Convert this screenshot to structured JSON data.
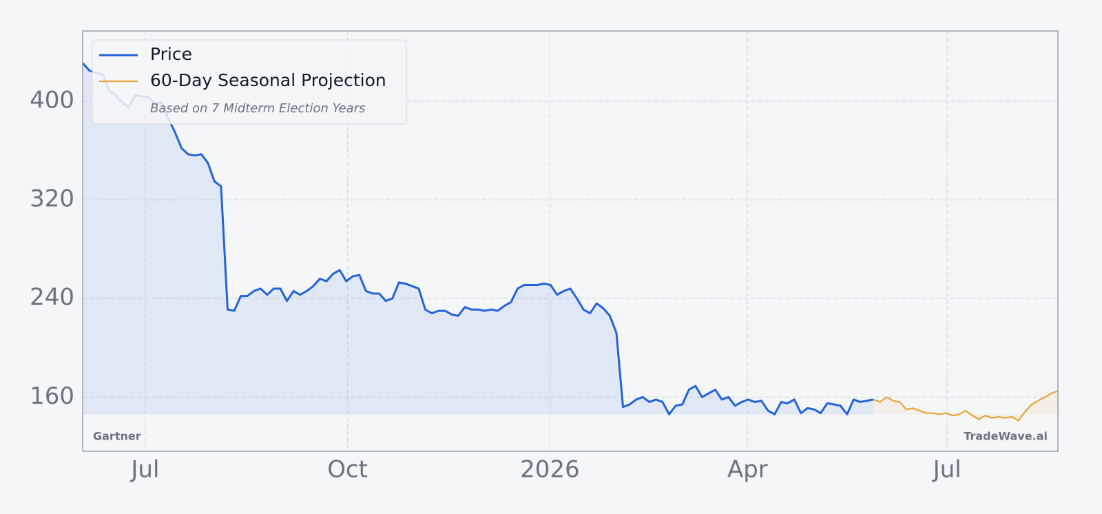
{
  "chart_data": {
    "type": "line",
    "legend_loc": "upper left",
    "legend_note": "Based on 7 Midterm Election Years",
    "watermark_left": "Gartner",
    "watermark_right": "TradeWave.ai",
    "grid": true,
    "fill": true,
    "ylim": [
      116,
      457
    ],
    "yticks": [
      160,
      240,
      320,
      400
    ],
    "xlim": [
      0,
      148
    ],
    "xticks": [
      {
        "value": 9.5,
        "label": "Jul"
      },
      {
        "value": 40.2,
        "label": "Oct"
      },
      {
        "value": 70.9,
        "label": "2026"
      },
      {
        "value": 100.9,
        "label": "Apr"
      },
      {
        "value": 131.2,
        "label": "Jul"
      }
    ],
    "series": [
      {
        "name": "Price",
        "color": "#2563d9",
        "values": [
          431,
          425,
          423,
          422,
          409,
          405,
          399,
          395,
          405,
          404,
          403,
          398,
          399,
          386,
          375,
          362,
          357,
          356,
          357,
          350,
          335,
          331,
          231,
          230,
          242,
          242,
          246,
          248,
          243,
          248,
          248,
          238,
          246,
          243,
          246,
          250,
          256,
          254,
          260,
          263,
          254,
          258,
          259,
          246,
          244,
          244,
          238,
          240,
          253,
          252,
          250,
          248,
          231,
          228,
          230,
          230,
          227,
          226,
          233,
          231,
          231,
          230,
          231,
          230,
          234,
          237,
          248,
          251,
          251,
          251,
          252,
          251,
          243,
          246,
          248,
          240,
          231,
          228,
          236,
          232,
          226,
          212,
          152,
          154,
          158,
          160,
          156,
          158,
          156,
          146,
          153,
          154,
          166,
          169,
          160,
          163,
          166,
          158,
          160,
          153,
          156,
          158,
          156,
          157,
          149,
          146,
          156,
          155,
          158,
          147,
          151,
          150,
          147,
          155,
          154,
          153,
          146,
          158,
          156,
          157,
          158,
          null,
          null,
          null,
          null,
          null,
          null,
          null,
          null,
          null,
          null,
          null,
          null,
          null,
          null,
          null,
          null,
          null,
          null,
          null,
          null,
          null,
          null,
          null,
          null,
          null,
          null,
          null,
          null,
          null,
          null,
          null,
          null,
          null,
          null
        ]
      },
      {
        "name": "60-Day Seasonal Projection",
        "color": "#e8a33a",
        "values": [
          null,
          null,
          null,
          null,
          null,
          null,
          null,
          null,
          null,
          null,
          null,
          null,
          null,
          null,
          null,
          null,
          null,
          null,
          null,
          null,
          null,
          null,
          null,
          null,
          null,
          null,
          null,
          null,
          null,
          null,
          null,
          null,
          null,
          null,
          null,
          null,
          null,
          null,
          null,
          null,
          null,
          null,
          null,
          null,
          null,
          null,
          null,
          null,
          null,
          null,
          null,
          null,
          null,
          null,
          null,
          null,
          null,
          null,
          null,
          null,
          null,
          null,
          null,
          null,
          null,
          null,
          null,
          null,
          null,
          null,
          null,
          null,
          null,
          null,
          null,
          null,
          null,
          null,
          null,
          null,
          null,
          null,
          null,
          null,
          null,
          null,
          null,
          null,
          null,
          null,
          null,
          null,
          null,
          null,
          null,
          null,
          null,
          null,
          null,
          null,
          null,
          null,
          null,
          null,
          null,
          null,
          null,
          null,
          null,
          null,
          null,
          null,
          null,
          null,
          null,
          null,
          null,
          null,
          null,
          null,
          158,
          156,
          160,
          157,
          156,
          150,
          151,
          149,
          147,
          147,
          146,
          147,
          145,
          146,
          149,
          145,
          142,
          145,
          143,
          144,
          143,
          144,
          141,
          148,
          154,
          157,
          160,
          163,
          165
        ]
      }
    ]
  }
}
